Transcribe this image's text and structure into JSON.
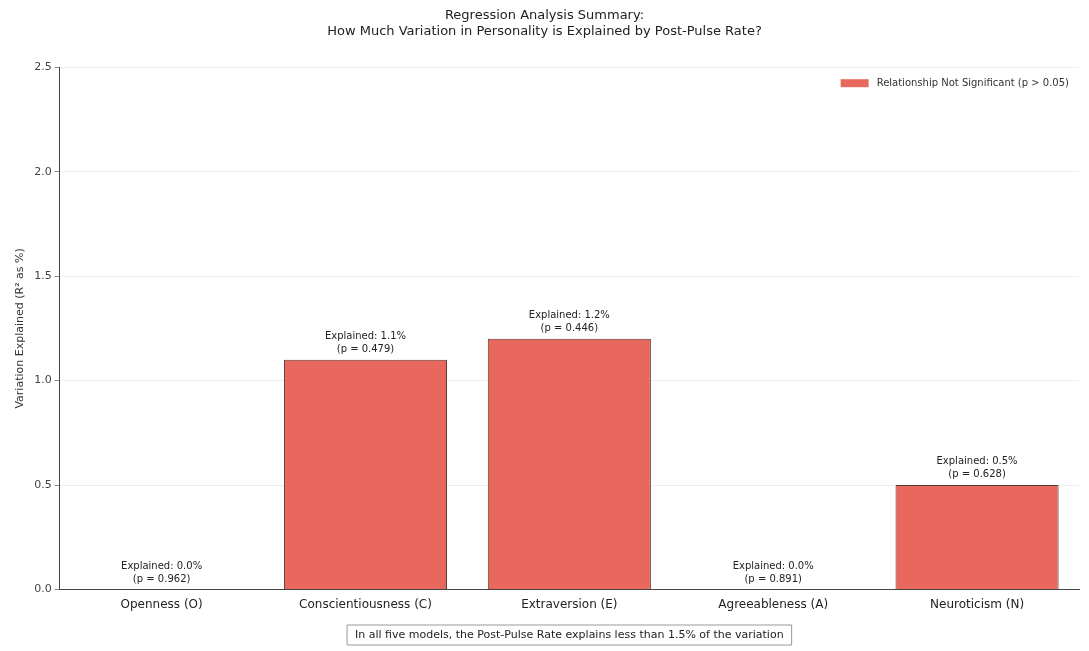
{
  "chart_data": {
    "type": "bar",
    "title": "Regression Analysis Summary:\nHow Much Variation in Personality is Explained by Post-Pulse Rate?",
    "ylabel": "Variation Explained (R² as %)",
    "categories": [
      "Openness (O)",
      "Conscientiousness (C)",
      "Extraversion (E)",
      "Agreeableness (A)",
      "Neuroticism (N)"
    ],
    "series": [
      {
        "name": "Relationship Not Significant (p > 0.05)",
        "color": "#e8685e",
        "values": [
          0.0,
          1.1,
          1.2,
          0.0,
          0.5
        ],
        "value_labels": [
          "Explained: 0.0%\n(p = 0.962)",
          "Explained: 1.1%\n(p = 0.479)",
          "Explained: 1.2%\n(p = 0.446)",
          "Explained: 0.0%\n(p = 0.891)",
          "Explained: 0.5%\n(p = 0.628)"
        ]
      }
    ],
    "ylim": [
      0,
      2.5
    ],
    "yticks": [
      {
        "value": 0,
        "label": "0.0"
      },
      0.5,
      {
        "value": 1,
        "label": "1.0"
      },
      1.5,
      {
        "value": 2,
        "label": "2.0"
      },
      2.5
    ],
    "grid": "y",
    "legend": "top right",
    "annotations": [
      "In all five models, the Post-Pulse Rate explains less than 1.5% of the variation"
    ]
  }
}
